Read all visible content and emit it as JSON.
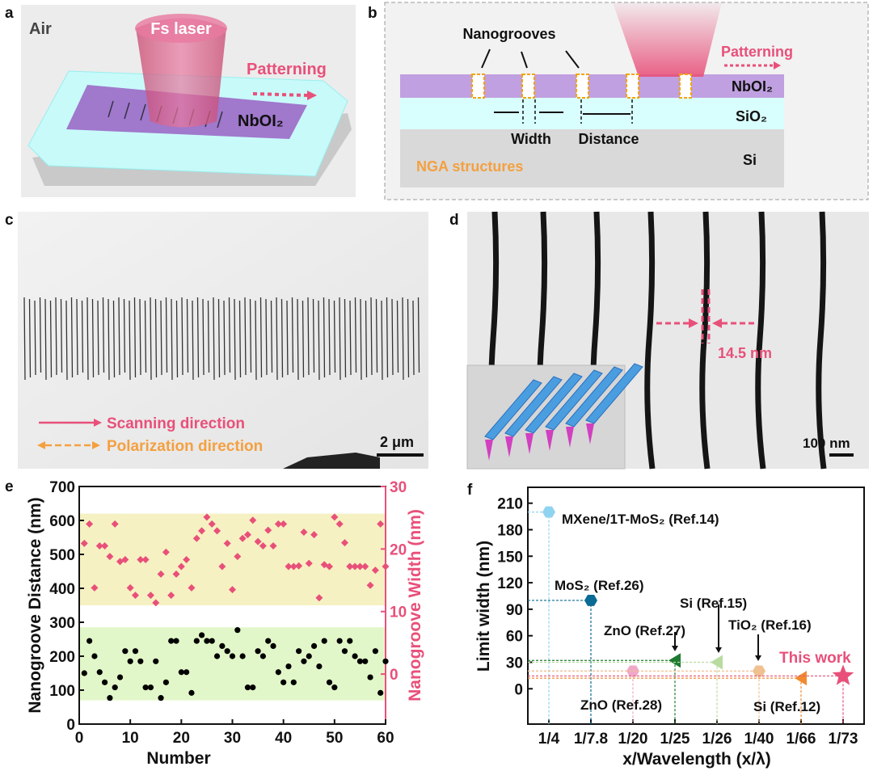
{
  "panels": {
    "a": {
      "label": "a",
      "air": "Air",
      "laser": "Fs laser",
      "patterning": "Patterning",
      "material": "NbOI₂"
    },
    "b": {
      "label": "b",
      "nanogrooves": "Nanogrooves",
      "patterning": "Patterning",
      "layer1": "NbOI₂",
      "layer2": "SiO₂",
      "layer3": "Si",
      "width": "Width",
      "distance": "Distance",
      "nga": "NGA structures"
    },
    "c": {
      "label": "c",
      "scanning": "Scanning direction",
      "polarization": "Polarization direction",
      "scale": "2 μm"
    },
    "d": {
      "label": "d",
      "measure": "14.5 nm",
      "scale": "100 nm"
    },
    "e": {
      "label": "e"
    },
    "f": {
      "label": "f"
    }
  },
  "colors": {
    "pink": "#e8507a",
    "orange": "#f4a040",
    "yellow_band": "#f6f1c2",
    "green_band": "#e2f7c9",
    "nbo": "#c0a0e0",
    "sio2": "#d9fefe",
    "si": "#d9d9d9"
  },
  "chart_data": [
    {
      "type": "scatter",
      "xlabel": "Number",
      "ylabel": "Nanogroove Distance (nm)",
      "y2label": "Nanogroove Width (nm)",
      "xlim": [
        0,
        60
      ],
      "ylim": [
        0,
        700
      ],
      "y2lim": [
        -8,
        30
      ],
      "xticks": [
        "0",
        "10",
        "20",
        "30",
        "40",
        "50",
        "60"
      ],
      "yticks": [
        "0",
        "100",
        "200",
        "300",
        "400",
        "500",
        "600",
        "700"
      ],
      "y2ticks": [
        "0",
        "10",
        "20",
        "30"
      ],
      "bands": [
        {
          "axis": "y",
          "from": 350,
          "to": 620,
          "color": "#f6f1c2"
        },
        {
          "axis": "y",
          "from": 70,
          "to": 285,
          "color": "#e2f7c9"
        }
      ],
      "x": [
        1,
        2,
        3,
        4,
        5,
        6,
        7,
        8,
        9,
        10,
        11,
        12,
        13,
        14,
        15,
        16,
        17,
        18,
        19,
        20,
        21,
        22,
        23,
        24,
        25,
        26,
        27,
        28,
        29,
        30,
        31,
        32,
        33,
        34,
        35,
        36,
        37,
        38,
        39,
        40,
        41,
        42,
        43,
        44,
        45,
        46,
        47,
        48,
        49,
        50,
        51,
        52,
        53,
        54,
        55,
        56,
        57,
        58,
        59,
        60
      ],
      "series": [
        {
          "axis": "left",
          "marker": "circle",
          "color": "#000000",
          "values": [
            150,
            245,
            200,
            153,
            123,
            77,
            108,
            138,
            215,
            185,
            215,
            185,
            108,
            108,
            185,
            77,
            123,
            245,
            245,
            153,
            153,
            92,
            245,
            262,
            245,
            245,
            200,
            230,
            215,
            200,
            277,
            200,
            108,
            108,
            215,
            200,
            245,
            230,
            153,
            123,
            170,
            123,
            215,
            185,
            200,
            230,
            170,
            245,
            123,
            108,
            245,
            215,
            245,
            200,
            185,
            185,
            138,
            215,
            92,
            185
          ]
        },
        {
          "axis": "right",
          "marker": "diamond",
          "color": "#e8507a",
          "values": [
            20.9,
            24,
            13.8,
            20.5,
            20.5,
            18.8,
            24,
            18,
            18.3,
            13.8,
            12.6,
            18.3,
            18.3,
            12.6,
            11.4,
            16,
            19.5,
            12.6,
            16,
            17.2,
            18.3,
            13.8,
            21.7,
            22.9,
            25.1,
            24,
            22.9,
            17.2,
            20.9,
            13.5,
            18.8,
            21.7,
            22.3,
            24.6,
            21.2,
            20.5,
            23,
            20.5,
            24,
            24,
            17.2,
            17.2,
            17.3,
            22.7,
            17.7,
            22.3,
            12.2,
            17.5,
            17.2,
            25.1,
            24,
            21,
            17.2,
            17.2,
            17.2,
            17.2,
            14.2,
            16.6,
            24,
            17.2
          ]
        }
      ]
    },
    {
      "type": "scatter",
      "xlabel": "x/Wavelength (x/λ)",
      "ylabel": "Limit width (nm)",
      "categories": [
        "1/4",
        "1/7.8",
        "1/20",
        "1/25",
        "1/26",
        "1/40",
        "1/66",
        "1/73"
      ],
      "ylim": [
        -40,
        228
      ],
      "yticks": [
        "0",
        "30",
        "60",
        "90",
        "120",
        "150",
        "180",
        "210"
      ],
      "points": [
        {
          "label": "MXene/1T-MoS₂  (Ref.14)",
          "x": "1/4",
          "y": 200,
          "marker": "hexagon",
          "color": "#8fd3f0"
        },
        {
          "label": "MoS₂ (Ref.26)",
          "x": "1/7.8",
          "y": 100,
          "marker": "hexagon",
          "color": "#0a6b94"
        },
        {
          "label": "ZnO (Ref.28)",
          "x": "1/20",
          "y": 20,
          "marker": "hexagon",
          "color": "#f0a8c8"
        },
        {
          "label": "ZnO (Ref.27)",
          "x": "1/25",
          "y": 32,
          "marker": "triangle-left",
          "color": "#1e7a30"
        },
        {
          "label": "Si (Ref.15)",
          "x": "1/26",
          "y": 30,
          "marker": "triangle-left",
          "color": "#b8dca0"
        },
        {
          "label": "TiO₂ (Ref.16)",
          "x": "1/40",
          "y": 20,
          "marker": "hexagon",
          "color": "#f0c090"
        },
        {
          "label": "Si (Ref.12)",
          "x": "1/66",
          "y": 12,
          "marker": "triangle-left",
          "color": "#f08a30"
        },
        {
          "label": "This work",
          "x": "1/73",
          "y": 14.5,
          "marker": "star",
          "color": "#e8507a"
        }
      ]
    }
  ]
}
